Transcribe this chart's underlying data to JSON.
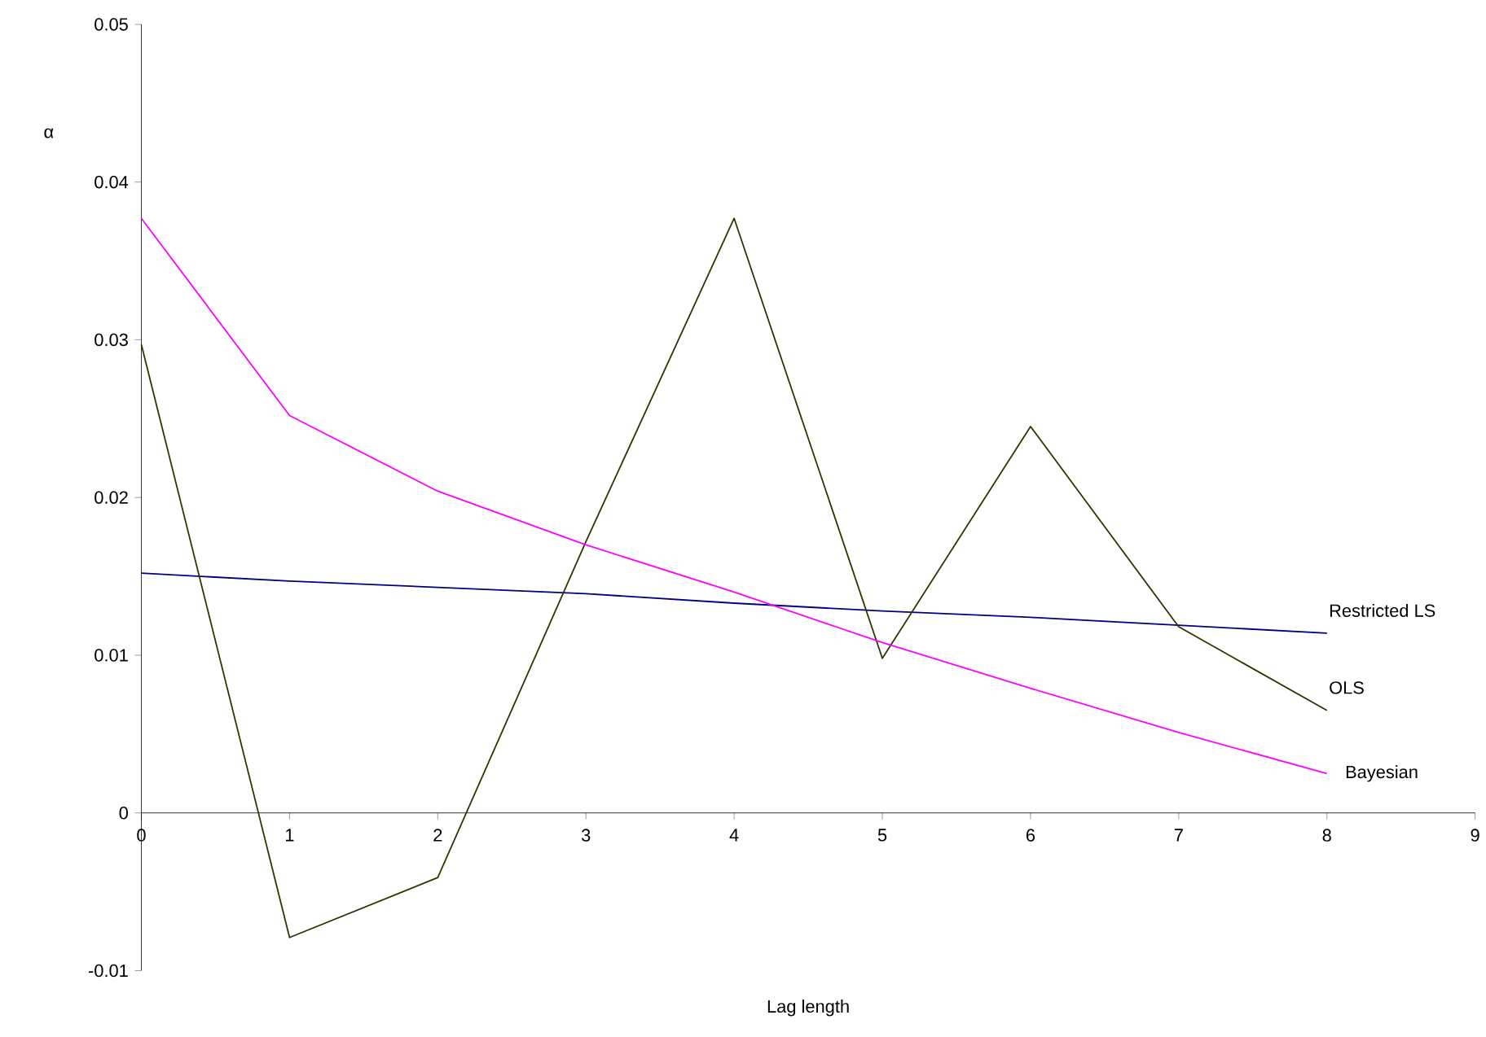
{
  "chart_data": {
    "type": "line",
    "xlabel": "Lag length",
    "ylabel": "α",
    "x": [
      0,
      1,
      2,
      3,
      4,
      5,
      6,
      7,
      8
    ],
    "xlim": [
      0,
      9
    ],
    "xticks": [
      0,
      1,
      2,
      3,
      4,
      5,
      6,
      7,
      8,
      9
    ],
    "ylim": [
      -0.01,
      0.05
    ],
    "yticks": [
      -0.01,
      0,
      0.01,
      0.02,
      0.03,
      0.04,
      0.05
    ],
    "grid": false,
    "legend": false,
    "marker": "none",
    "line_style": "solid",
    "series": [
      {
        "name": "Restricted LS",
        "color": "#000080",
        "values": [
          0.0152,
          0.0147,
          0.0143,
          0.0139,
          0.0133,
          0.0128,
          0.0124,
          0.0119,
          0.0114
        ]
      },
      {
        "name": "OLS",
        "color": "#333300",
        "values": [
          0.0297,
          -0.0079,
          -0.0041,
          0.0172,
          0.0377,
          0.0098,
          0.0245,
          0.0118,
          0.0065
        ]
      },
      {
        "name": "Bayesian",
        "color": "#ff00ff",
        "values": [
          0.0377,
          0.0252,
          0.0204,
          0.017,
          0.014,
          0.0108,
          0.0079,
          0.0051,
          0.0025
        ]
      }
    ]
  }
}
